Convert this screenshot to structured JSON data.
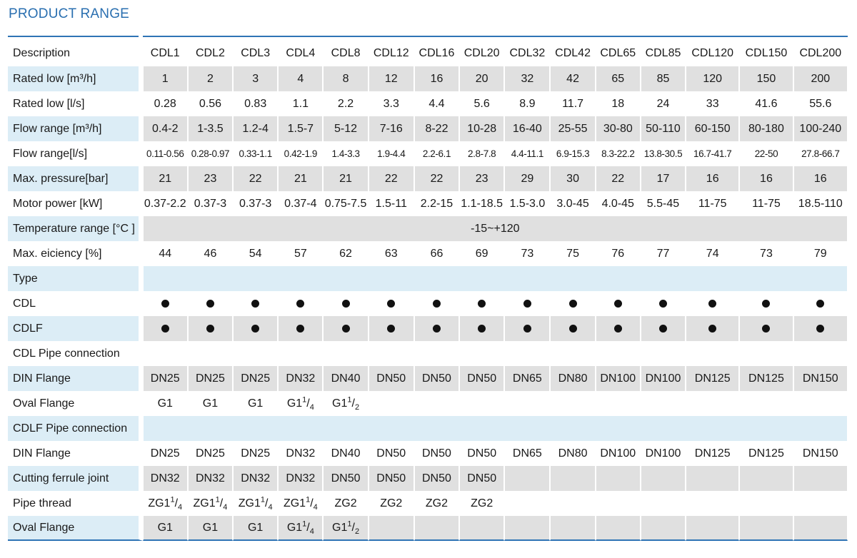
{
  "title": "PRODUCT RANGE",
  "columns": [
    "CDL1",
    "CDL2",
    "CDL3",
    "CDL4",
    "CDL8",
    "CDL12",
    "CDL16",
    "CDL20",
    "CDL32",
    "CDL42",
    "CDL65",
    "CDL85",
    "CDL120",
    "CDL150",
    "CDL200"
  ],
  "header_label": "Description",
  "rows": {
    "rated_m3h": {
      "label": "Rated low [m³/h]",
      "values": [
        "1",
        "2",
        "3",
        "4",
        "8",
        "12",
        "16",
        "20",
        "32",
        "42",
        "65",
        "85",
        "120",
        "150",
        "200"
      ]
    },
    "rated_ls": {
      "label": "Rated low [l/s]",
      "values": [
        "0.28",
        "0.56",
        "0.83",
        "1.1",
        "2.2",
        "3.3",
        "4.4",
        "5.6",
        "8.9",
        "11.7",
        "18",
        "24",
        "33",
        "41.6",
        "55.6"
      ]
    },
    "flow_m3h": {
      "label": "Flow range [m³/h]",
      "values": [
        "0.4-2",
        "1-3.5",
        "1.2-4",
        "1.5-7",
        "5-12",
        "7-16",
        "8-22",
        "10-28",
        "16-40",
        "25-55",
        "30-80",
        "50-110",
        "60-150",
        "80-180",
        "100-240"
      ]
    },
    "flow_ls": {
      "label": "Flow range[l/s]",
      "values": [
        "0.11-0.56",
        "0.28-0.97",
        "0.33-1.1",
        "0.42-1.9",
        "1.4-3.3",
        "1.9-4.4",
        "2.2-6.1",
        "2.8-7.8",
        "4.4-11.1",
        "6.9-15.3",
        "8.3-22.2",
        "13.8-30.5",
        "16.7-41.7",
        "22-50",
        "27.8-66.7"
      ]
    },
    "max_pressure": {
      "label": "Max. pressure[bar]",
      "values": [
        "21",
        "23",
        "22",
        "21",
        "21",
        "22",
        "22",
        "23",
        "29",
        "30",
        "22",
        "17",
        "16",
        "16",
        "16"
      ]
    },
    "motor_power": {
      "label": "Motor power [kW]",
      "values": [
        "0.37-2.2",
        "0.37-3",
        "0.37-3",
        "0.37-4",
        "0.75-7.5",
        "1.5-11",
        "2.2-15",
        "1.1-18.5",
        "1.5-3.0",
        "3.0-45",
        "4.0-45",
        "5.5-45",
        "11-75",
        "11-75",
        "18.5-110"
      ]
    },
    "temperature": {
      "label": "Temperature range [°C ]",
      "value": "-15~+120"
    },
    "max_eff": {
      "label": "Max. eiciency [%]",
      "values": [
        "44",
        "46",
        "54",
        "57",
        "62",
        "63",
        "66",
        "69",
        "73",
        "75",
        "76",
        "77",
        "74",
        "73",
        "79"
      ]
    },
    "type": {
      "label": "Type"
    },
    "cdl": {
      "label": "CDL"
    },
    "cdlf": {
      "label": "CDLF"
    },
    "cdl_pipe": {
      "label": "CDL Pipe connection"
    },
    "cdl_din": {
      "label": "DIN Flange",
      "values": [
        "DN25",
        "DN25",
        "DN25",
        "DN32",
        "DN40",
        "DN50",
        "DN50",
        "DN50",
        "DN65",
        "DN80",
        "DN100",
        "DN100",
        "DN125",
        "DN125",
        "DN150"
      ]
    },
    "cdl_oval": {
      "label": "Oval Flange"
    },
    "cdlf_pipe": {
      "label": "CDLF Pipe connection"
    },
    "cdlf_din": {
      "label": "DIN Flange",
      "values": [
        "DN25",
        "DN25",
        "DN25",
        "DN32",
        "DN40",
        "DN50",
        "DN50",
        "DN50",
        "DN65",
        "DN80",
        "DN100",
        "DN100",
        "DN125",
        "DN125",
        "DN150"
      ]
    },
    "ferrule": {
      "label": "Cutting ferrule joint",
      "values": [
        "DN32",
        "DN32",
        "DN32",
        "DN32",
        "DN50",
        "DN50",
        "DN50",
        "DN50"
      ]
    },
    "pipe_thread": {
      "label": "Pipe thread"
    },
    "cdlf_oval": {
      "label": "Oval Flange"
    }
  },
  "fractions": {
    "g1": "G1",
    "zg": "ZG1",
    "zg2": "ZG2",
    "one": "1",
    "four": "4",
    "two": "2"
  }
}
